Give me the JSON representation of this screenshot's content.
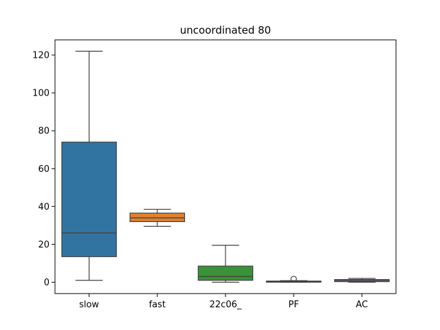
{
  "chart_data": {
    "type": "box",
    "title": "uncoordinated 80",
    "xlabel": "",
    "ylabel": "",
    "ylim": [
      -6,
      128
    ],
    "yticks": [
      0,
      20,
      40,
      60,
      80,
      100,
      120
    ],
    "grid": false,
    "categories": [
      "slow",
      "fast",
      "22c06_",
      "PF",
      "AC"
    ],
    "boxes": [
      {
        "name": "slow",
        "whisker_low": 1,
        "q1": 13.5,
        "median": 26,
        "q3": 74,
        "whisker_high": 122,
        "outliers": [],
        "color": "#3274a1"
      },
      {
        "name": "fast",
        "whisker_low": 29.5,
        "q1": 32,
        "median": 34,
        "q3": 36.5,
        "whisker_high": 38.5,
        "outliers": [],
        "color": "#e1812c"
      },
      {
        "name": "22c06_",
        "whisker_low": 0,
        "q1": 1,
        "median": 3,
        "q3": 8.5,
        "whisker_high": 19.5,
        "outliers": [],
        "color": "#3a923a"
      },
      {
        "name": "PF",
        "whisker_low": 0,
        "q1": 0,
        "median": 0.2,
        "q3": 0.6,
        "whisker_high": 0.8,
        "outliers": [
          1.7
        ],
        "color": "#c03d3e"
      },
      {
        "name": "AC",
        "whisker_low": 0,
        "q1": 0.3,
        "median": 0.9,
        "q3": 1.4,
        "whisker_high": 2,
        "outliers": [],
        "color": "#9372b2"
      }
    ]
  }
}
